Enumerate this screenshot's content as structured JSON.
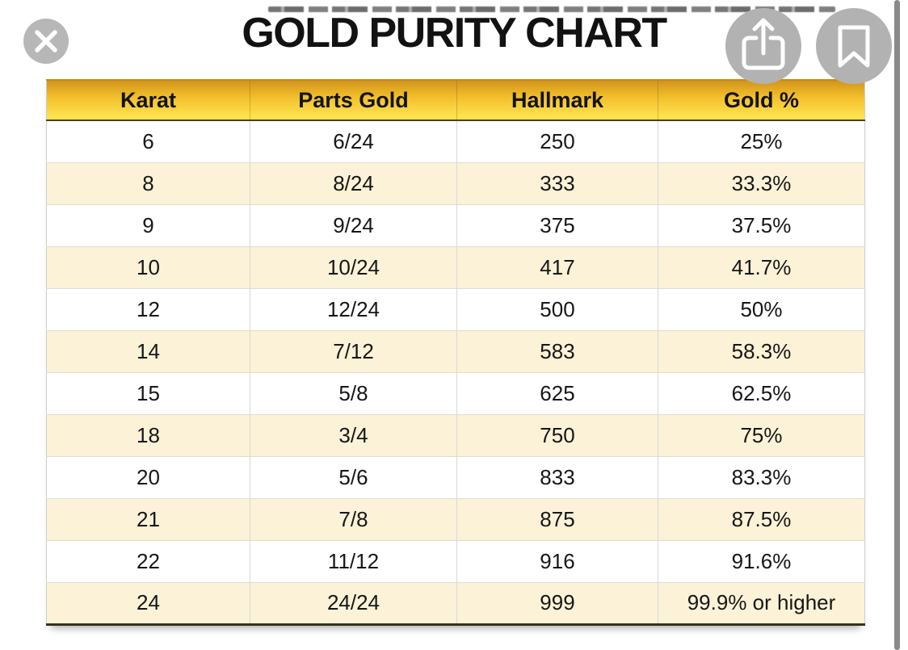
{
  "title": "GOLD PURITY CHART",
  "viewer": {
    "close_button": "close",
    "share_button": "share",
    "bookmark_button": "bookmark",
    "scrollbar": "vertical-scroll-indicator"
  },
  "table": {
    "headers": [
      "Karat",
      "Parts Gold",
      "Hallmark",
      "Gold %"
    ],
    "rows": [
      [
        "6",
        "6/24",
        "250",
        "25%"
      ],
      [
        "8",
        "8/24",
        "333",
        "33.3%"
      ],
      [
        "9",
        "9/24",
        "375",
        "37.5%"
      ],
      [
        "10",
        "10/24",
        "417",
        "41.7%"
      ],
      [
        "12",
        "12/24",
        "500",
        "50%"
      ],
      [
        "14",
        "7/12",
        "583",
        "58.3%"
      ],
      [
        "15",
        "5/8",
        "625",
        "62.5%"
      ],
      [
        "18",
        "3/4",
        "750",
        "75%"
      ],
      [
        "20",
        "5/6",
        "833",
        "83.3%"
      ],
      [
        "21",
        "7/8",
        "875",
        "87.5%"
      ],
      [
        "22",
        "11/12",
        "916",
        "91.6%"
      ],
      [
        "24",
        "24/24",
        "999",
        "99.9% or higher"
      ]
    ]
  },
  "chart_data": {
    "type": "table",
    "title": "GOLD PURITY CHART",
    "columns": [
      "Karat",
      "Parts Gold",
      "Hallmark",
      "Gold %"
    ],
    "rows": [
      {
        "karat": 6,
        "parts_gold": "6/24",
        "hallmark": 250,
        "gold_percent": "25%"
      },
      {
        "karat": 8,
        "parts_gold": "8/24",
        "hallmark": 333,
        "gold_percent": "33.3%"
      },
      {
        "karat": 9,
        "parts_gold": "9/24",
        "hallmark": 375,
        "gold_percent": "37.5%"
      },
      {
        "karat": 10,
        "parts_gold": "10/24",
        "hallmark": 417,
        "gold_percent": "41.7%"
      },
      {
        "karat": 12,
        "parts_gold": "12/24",
        "hallmark": 500,
        "gold_percent": "50%"
      },
      {
        "karat": 14,
        "parts_gold": "7/12",
        "hallmark": 583,
        "gold_percent": "58.3%"
      },
      {
        "karat": 15,
        "parts_gold": "5/8",
        "hallmark": 625,
        "gold_percent": "62.5%"
      },
      {
        "karat": 18,
        "parts_gold": "3/4",
        "hallmark": 750,
        "gold_percent": "75%"
      },
      {
        "karat": 20,
        "parts_gold": "5/6",
        "hallmark": 833,
        "gold_percent": "83.3%"
      },
      {
        "karat": 21,
        "parts_gold": "7/8",
        "hallmark": 875,
        "gold_percent": "87.5%"
      },
      {
        "karat": 22,
        "parts_gold": "11/12",
        "hallmark": 916,
        "gold_percent": "91.6%"
      },
      {
        "karat": 24,
        "parts_gold": "24/24",
        "hallmark": 999,
        "gold_percent": "99.9% or higher"
      }
    ]
  },
  "colors": {
    "header_gradient_top": "#D2951C",
    "header_gradient_bottom": "#FFE14E",
    "header_border_bottom": "#4B431B",
    "row_cream": "#FBF2D7",
    "row_white": "#FFFFFF",
    "cell_text": "#161616",
    "button_gray": "#B2B2B2",
    "scrollbar_gray": "#8A8A8A"
  }
}
